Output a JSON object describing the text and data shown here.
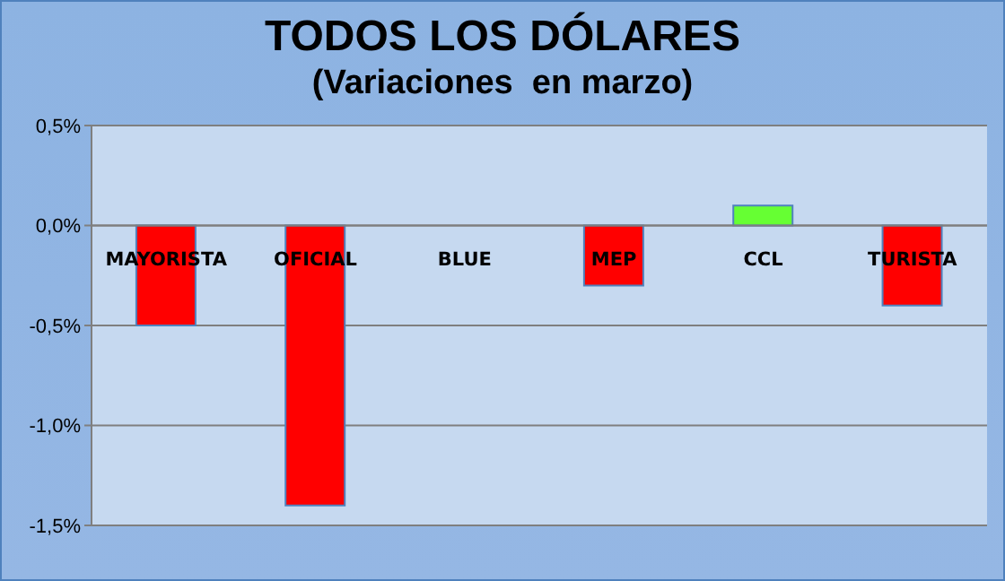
{
  "chart_data": {
    "type": "bar",
    "title": "TODOS LOS DÓLARES",
    "subtitle": "(Variaciones  en marzo)",
    "categories": [
      "MAYORISTA",
      "OFICIAL",
      "BLUE",
      "MEP",
      "CCL",
      "TURISTA"
    ],
    "values": [
      -0.5,
      -1.4,
      0,
      -0.3,
      0.1,
      -0.4
    ],
    "colors": [
      "#ff0000",
      "#ff0000",
      "#ff0000",
      "#ff0000",
      "#66ff33",
      "#ff0000"
    ],
    "ylim": [
      -1.5,
      0.5
    ],
    "yticks": [
      {
        "value": 0.5,
        "label": "0,5%"
      },
      {
        "value": 0,
        "label": "0,0%"
      },
      {
        "value": -0.5,
        "label": "-0,5%"
      },
      {
        "value": -1,
        "label": "-1,0%"
      },
      {
        "value": -1.5,
        "label": "-1,5%"
      }
    ],
    "grid": "y"
  }
}
